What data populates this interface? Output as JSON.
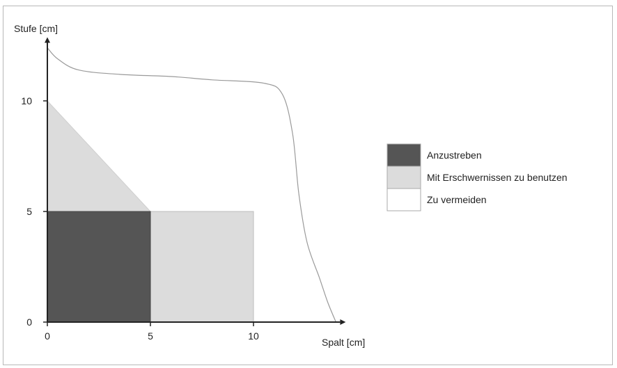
{
  "chart_data": {
    "type": "area",
    "title": "",
    "ylabel": "Stufe [cm]",
    "xlabel": "Spalt [cm]",
    "xlim": [
      0,
      14
    ],
    "ylim": [
      0,
      12.5
    ],
    "xticks": [
      0,
      5,
      10
    ],
    "yticks": [
      0,
      5,
      10
    ],
    "grid": false,
    "legend_position": "right",
    "regions": [
      {
        "name": "Anzustreben",
        "color": "#555555",
        "polygon": [
          [
            0,
            0
          ],
          [
            5,
            0
          ],
          [
            5,
            5
          ],
          [
            0,
            5
          ]
        ]
      },
      {
        "name": "Mit Erschwernissen zu benutzen",
        "color": "#dcdcdc",
        "polygon": [
          [
            0,
            5
          ],
          [
            0,
            10
          ],
          [
            5,
            5
          ],
          [
            10,
            5
          ],
          [
            10,
            0
          ],
          [
            5,
            0
          ],
          [
            5,
            5
          ]
        ]
      },
      {
        "name": "Zu vermeiden",
        "color": "#ffffff",
        "boundary": [
          [
            0,
            12.4
          ],
          [
            0.5,
            11.9
          ],
          [
            1.5,
            11.4
          ],
          [
            3.5,
            11.2
          ],
          [
            6,
            11.1
          ],
          [
            8,
            10.95
          ],
          [
            10.5,
            10.8
          ],
          [
            11.4,
            10.3
          ],
          [
            11.9,
            8.5
          ],
          [
            12.2,
            5.8
          ],
          [
            12.6,
            3.6
          ],
          [
            13.2,
            2.0
          ],
          [
            13.6,
            0.9
          ],
          [
            14,
            0
          ]
        ]
      }
    ],
    "legend": [
      {
        "label": "Anzustreben",
        "color": "#555555"
      },
      {
        "label": "Mit Erschwernissen zu benutzen",
        "color": "#dcdcdc"
      },
      {
        "label": "Zu vermeiden",
        "color": "#ffffff"
      }
    ]
  }
}
